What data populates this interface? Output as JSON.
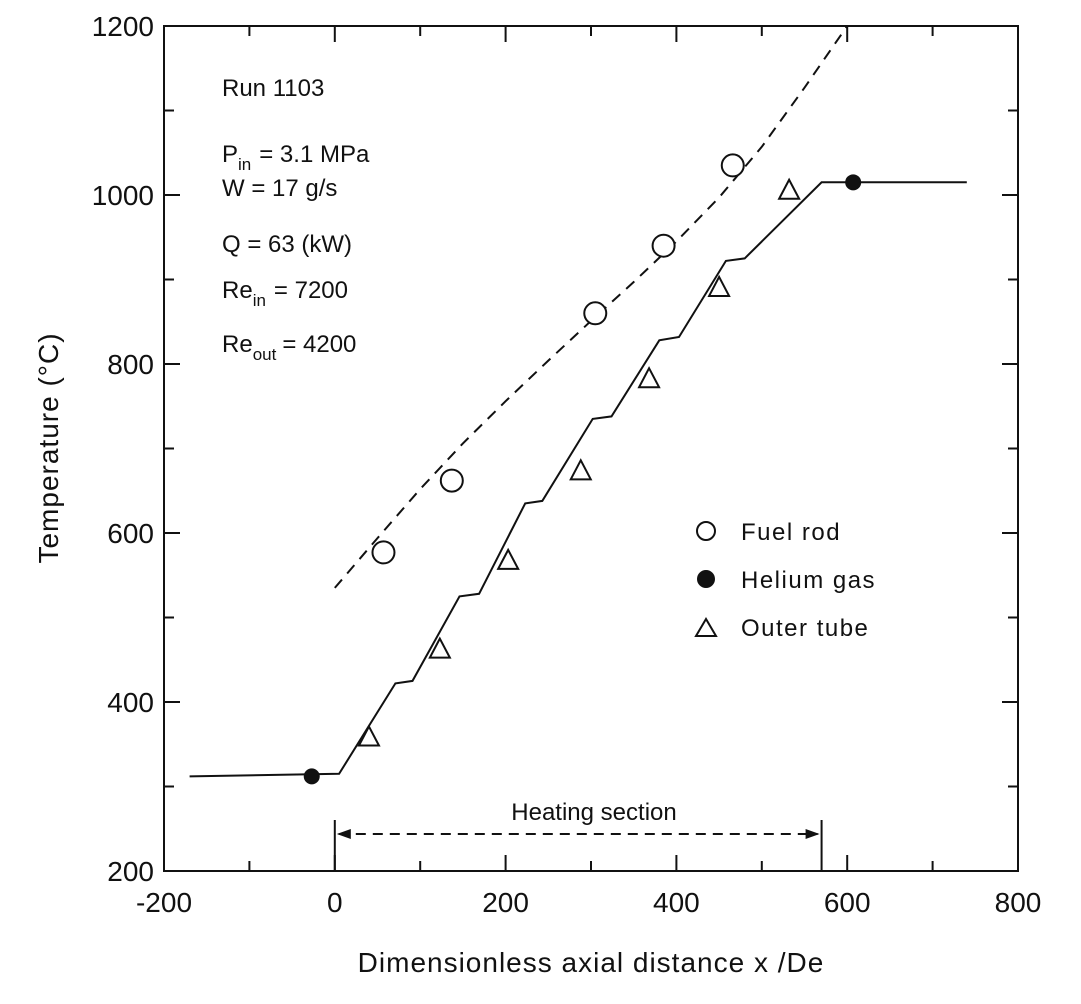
{
  "chart_data": {
    "type": "line",
    "xlabel": "Dimensionless axial distance x /De",
    "ylabel": "Temperature (°C)",
    "xlim": [
      -200,
      800
    ],
    "ylim": [
      200,
      1200
    ],
    "xticks": [
      -200,
      0,
      200,
      400,
      600,
      800
    ],
    "yticks": [
      200,
      400,
      600,
      800,
      1000,
      1200
    ],
    "x_minor_step": 100,
    "y_minor_step": 100,
    "grid": false,
    "legend_position": "center-right",
    "annotations": {
      "run": "Run 1103",
      "p_in_symbol": "P",
      "p_in_sub": "in",
      "p_in_value": "= 3.1 MPa",
      "w": "W = 17 g/s",
      "q": "Q = 63 (kW)",
      "re_in_symbol": "Re",
      "re_in_sub": "in",
      "re_in_value": "= 7200",
      "re_out_symbol": "Re",
      "re_out_sub": "out",
      "re_out_value": "= 4200",
      "heating_section": "Heating section",
      "heating_section_range": [
        0,
        570
      ]
    },
    "series": [
      {
        "name": "Fuel rod",
        "kind": "scatter",
        "marker": "open-circle",
        "points": [
          [
            57,
            577
          ],
          [
            137,
            662
          ],
          [
            305,
            860
          ],
          [
            385,
            940
          ],
          [
            466,
            1035
          ]
        ]
      },
      {
        "name": "Helium gas",
        "kind": "scatter",
        "marker": "filled-circle",
        "points": [
          [
            -27,
            312
          ],
          [
            607,
            1015
          ]
        ]
      },
      {
        "name": "Outer tube",
        "kind": "scatter",
        "marker": "open-triangle",
        "points": [
          [
            40,
            358
          ],
          [
            123,
            462
          ],
          [
            203,
            567
          ],
          [
            288,
            673
          ],
          [
            368,
            782
          ],
          [
            450,
            890
          ],
          [
            532,
            1005
          ]
        ]
      },
      {
        "kind": "line",
        "style": "solid",
        "points": [
          [
            -170,
            312
          ],
          [
            5,
            315
          ],
          [
            71,
            422
          ],
          [
            91,
            425
          ],
          [
            146,
            525
          ],
          [
            169,
            528
          ],
          [
            223,
            635
          ],
          [
            243,
            638
          ],
          [
            302,
            735
          ],
          [
            324,
            738
          ],
          [
            380,
            828
          ],
          [
            403,
            832
          ],
          [
            458,
            922
          ],
          [
            480,
            925
          ],
          [
            570,
            1015
          ],
          [
            740,
            1015
          ]
        ]
      },
      {
        "kind": "line",
        "style": "dashed",
        "points": [
          [
            0,
            535
          ],
          [
            50,
            594
          ],
          [
            100,
            652
          ],
          [
            150,
            706
          ],
          [
            200,
            756
          ],
          [
            250,
            804
          ],
          [
            300,
            851
          ],
          [
            350,
            897
          ],
          [
            400,
            945
          ],
          [
            450,
            997
          ],
          [
            500,
            1057
          ],
          [
            550,
            1127
          ],
          [
            600,
            1200
          ]
        ]
      }
    ]
  }
}
